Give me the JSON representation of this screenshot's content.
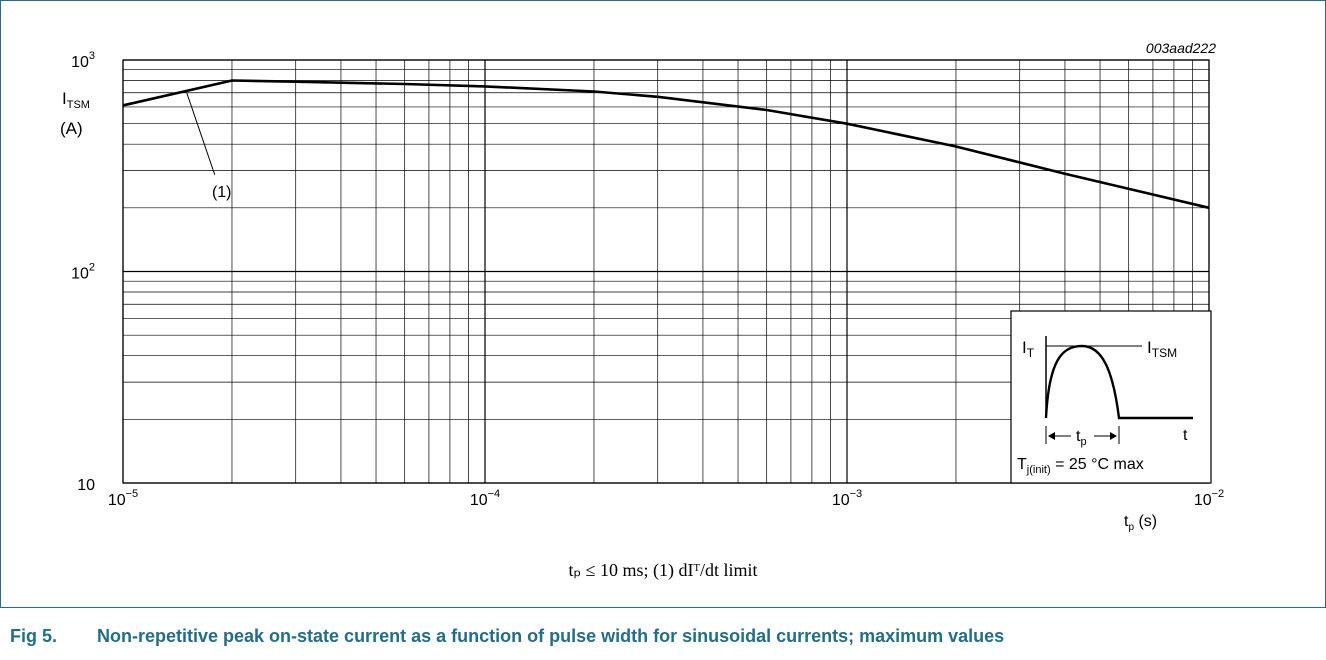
{
  "figure": {
    "id": "003aad222",
    "caption_label": "Fig 5.",
    "caption_text": "Non-repetitive peak on-state current as a function of pulse width for sinusoidal currents; maximum values",
    "footnote": "tₚ  ≤  10 ms;    (1) dIᵀ/dt limit"
  },
  "chart_data": {
    "type": "line",
    "x_scale": "log",
    "y_scale": "log",
    "xlim": [
      1e-05,
      0.01
    ],
    "ylim": [
      10,
      1000
    ],
    "grid": true,
    "xlabel": {
      "main": "t",
      "sub": "p",
      "unit": " (s)"
    },
    "ylabel": {
      "main": "I",
      "sub": "TSM",
      "unit": "(A)"
    },
    "x_ticks": [
      {
        "value": 1e-05,
        "base": "10",
        "exp": "−5"
      },
      {
        "value": 0.0001,
        "base": "10",
        "exp": "−4"
      },
      {
        "value": 0.001,
        "base": "10",
        "exp": "−3"
      },
      {
        "value": 0.01,
        "base": "10",
        "exp": "−2"
      }
    ],
    "y_ticks": [
      {
        "value": 1000,
        "base": "10",
        "exp": "3"
      },
      {
        "value": 100,
        "base": "10",
        "exp": "2"
      },
      {
        "value": 10,
        "base": "10",
        "exp": ""
      }
    ],
    "series": [
      {
        "x": [
          1e-05,
          2e-05,
          3e-05,
          6e-05,
          0.0001,
          0.0002,
          0.0003,
          0.0006,
          0.001,
          0.002,
          0.004,
          0.01
        ],
        "y": [
          610,
          800,
          790,
          770,
          750,
          710,
          670,
          580,
          500,
          390,
          290,
          200
        ]
      }
    ],
    "annotation": {
      "label": "(1)",
      "x": 1.5e-05,
      "y": 700
    },
    "inset": {
      "it_label": {
        "main": "I",
        "sub": "T"
      },
      "itsm_label": {
        "main": "I",
        "sub": "TSM"
      },
      "t_label": "t",
      "tp_label": {
        "main": "t",
        "sub": "p"
      },
      "condition": {
        "main": "T",
        "sub": "j(init)",
        "rest": " = 25 °C max"
      }
    }
  }
}
